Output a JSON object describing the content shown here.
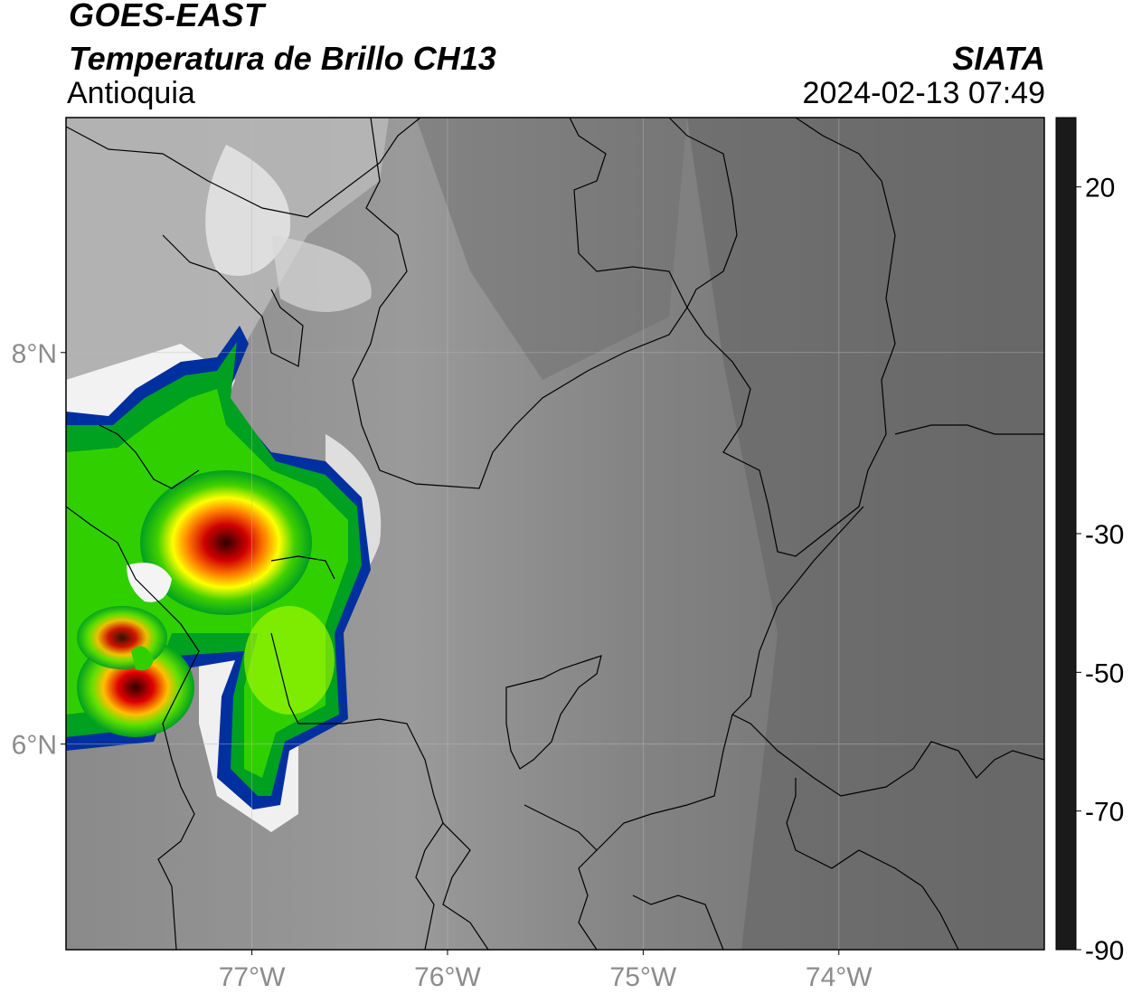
{
  "header": {
    "satellite": "GOES-EAST",
    "product": "Temperatura de Brillo CH13",
    "region": "Antioquia",
    "brand": "SIATA",
    "timestamp": "2024-02-13 07:49"
  },
  "map": {
    "lon_range": [
      -78.0,
      -73.0
    ],
    "lat_range": [
      5.0,
      9.0
    ],
    "lon_ticks": [
      {
        "value": -77,
        "label": "77°W"
      },
      {
        "value": -76,
        "label": "76°W"
      },
      {
        "value": -75,
        "label": "75°W"
      },
      {
        "value": -74,
        "label": "74°W"
      }
    ],
    "lat_ticks": [
      {
        "value": 8,
        "label": "8°N"
      },
      {
        "value": 6,
        "label": "6°N"
      }
    ],
    "grid": true
  },
  "colorbar": {
    "range": [
      -90,
      30
    ],
    "ticks": [
      {
        "value": 20,
        "label": "20"
      },
      {
        "value": -30,
        "label": "-30"
      },
      {
        "value": -50,
        "label": "-50"
      },
      {
        "value": -70,
        "label": "-70"
      },
      {
        "value": -90,
        "label": "-90"
      }
    ],
    "colors": {
      "warm_dark": "#1a1a1a",
      "grey": "#7a7a7a",
      "white": "#f4f4f4",
      "cyan": "#00c8ff",
      "blue": "#0030a0",
      "green": "#00c000",
      "lime": "#b0ff00",
      "yellow": "#ffff00",
      "orange": "#ff8000",
      "red": "#e00000",
      "darkred": "#500000",
      "black": "#000000",
      "pink": "#e070c0",
      "magenta": "#902090"
    }
  }
}
